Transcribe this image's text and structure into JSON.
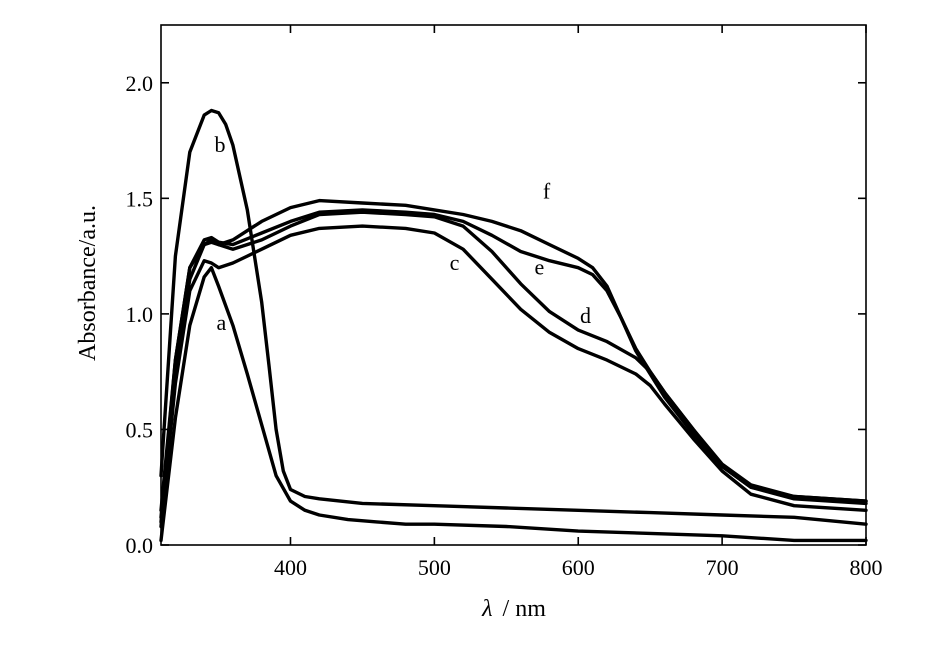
{
  "chart_data": {
    "type": "line",
    "title": "",
    "xlabel_symbol": "λ",
    "xlabel_unit": "/ nm",
    "ylabel": "Absorbance/a.u.",
    "xlim": [
      310,
      800
    ],
    "ylim": [
      0,
      2.25
    ],
    "x_ticks": [
      400,
      500,
      600,
      700,
      800
    ],
    "x_tick_labels": [
      "400",
      "500",
      "600",
      "700",
      "800"
    ],
    "y_ticks": [
      0.0,
      0.5,
      1.0,
      1.5,
      2.0
    ],
    "y_tick_labels": [
      "0.0",
      "0.5",
      "1.0",
      "1.5",
      "2.0"
    ],
    "grid": false,
    "legend": "none",
    "series": [
      {
        "name": "a",
        "x": [
          310,
          320,
          330,
          340,
          345,
          350,
          360,
          370,
          380,
          390,
          400,
          410,
          420,
          440,
          460,
          480,
          500,
          550,
          600,
          650,
          700,
          750,
          800
        ],
        "y": [
          0.02,
          0.55,
          0.95,
          1.16,
          1.2,
          1.12,
          0.95,
          0.74,
          0.52,
          0.3,
          0.19,
          0.15,
          0.13,
          0.11,
          0.1,
          0.09,
          0.09,
          0.08,
          0.06,
          0.05,
          0.04,
          0.02,
          0.02
        ]
      },
      {
        "name": "b",
        "x": [
          310,
          320,
          330,
          340,
          345,
          350,
          355,
          360,
          370,
          380,
          385,
          390,
          395,
          400,
          410,
          420,
          450,
          500,
          550,
          600,
          650,
          700,
          750,
          800
        ],
        "y": [
          0.3,
          1.25,
          1.7,
          1.86,
          1.88,
          1.87,
          1.82,
          1.73,
          1.45,
          1.05,
          0.78,
          0.5,
          0.32,
          0.24,
          0.21,
          0.2,
          0.18,
          0.17,
          0.16,
          0.15,
          0.14,
          0.13,
          0.12,
          0.09
        ]
      },
      {
        "name": "c",
        "x": [
          310,
          320,
          330,
          340,
          345,
          350,
          360,
          370,
          380,
          400,
          420,
          450,
          480,
          500,
          520,
          540,
          560,
          580,
          600,
          620,
          640,
          650,
          660,
          680,
          700,
          720,
          750,
          800
        ],
        "y": [
          0.08,
          0.7,
          1.1,
          1.23,
          1.22,
          1.2,
          1.22,
          1.25,
          1.28,
          1.34,
          1.37,
          1.38,
          1.37,
          1.35,
          1.28,
          1.15,
          1.02,
          0.92,
          0.85,
          0.8,
          0.74,
          0.69,
          0.61,
          0.46,
          0.32,
          0.22,
          0.17,
          0.15
        ]
      },
      {
        "name": "d",
        "x": [
          310,
          320,
          330,
          340,
          345,
          350,
          360,
          380,
          400,
          420,
          450,
          480,
          500,
          520,
          540,
          560,
          580,
          600,
          620,
          640,
          650,
          660,
          680,
          700,
          720,
          750,
          800
        ],
        "y": [
          0.1,
          0.75,
          1.15,
          1.3,
          1.32,
          1.3,
          1.28,
          1.32,
          1.38,
          1.43,
          1.44,
          1.43,
          1.42,
          1.38,
          1.27,
          1.13,
          1.01,
          0.93,
          0.88,
          0.81,
          0.75,
          0.66,
          0.5,
          0.34,
          0.25,
          0.2,
          0.18
        ]
      },
      {
        "name": "e",
        "x": [
          310,
          320,
          330,
          340,
          345,
          350,
          360,
          380,
          400,
          420,
          450,
          480,
          500,
          520,
          540,
          560,
          580,
          600,
          610,
          620,
          630,
          640,
          650,
          660,
          680,
          700,
          720,
          750,
          800
        ],
        "y": [
          0.12,
          0.8,
          1.2,
          1.32,
          1.33,
          1.31,
          1.3,
          1.35,
          1.4,
          1.44,
          1.45,
          1.44,
          1.43,
          1.4,
          1.34,
          1.27,
          1.23,
          1.2,
          1.17,
          1.1,
          0.98,
          0.85,
          0.75,
          0.66,
          0.5,
          0.35,
          0.26,
          0.21,
          0.19
        ]
      },
      {
        "name": "f",
        "x": [
          310,
          320,
          330,
          340,
          345,
          350,
          360,
          380,
          400,
          420,
          450,
          480,
          500,
          520,
          540,
          560,
          580,
          600,
          610,
          620,
          630,
          640,
          650,
          660,
          680,
          700,
          720,
          750,
          800
        ],
        "y": [
          0.15,
          0.8,
          1.2,
          1.3,
          1.31,
          1.3,
          1.32,
          1.4,
          1.46,
          1.49,
          1.48,
          1.47,
          1.45,
          1.43,
          1.4,
          1.36,
          1.3,
          1.24,
          1.2,
          1.12,
          0.98,
          0.84,
          0.74,
          0.64,
          0.48,
          0.34,
          0.25,
          0.21,
          0.19
        ]
      }
    ],
    "annotations": [
      {
        "text": "a",
        "x": 352,
        "y": 0.93
      },
      {
        "text": "b",
        "x": 351,
        "y": 1.7
      },
      {
        "text": "c",
        "x": 514,
        "y": 1.19
      },
      {
        "text": "d",
        "x": 605,
        "y": 0.96
      },
      {
        "text": "e",
        "x": 573,
        "y": 1.17
      },
      {
        "text": "f",
        "x": 578,
        "y": 1.5
      }
    ]
  }
}
